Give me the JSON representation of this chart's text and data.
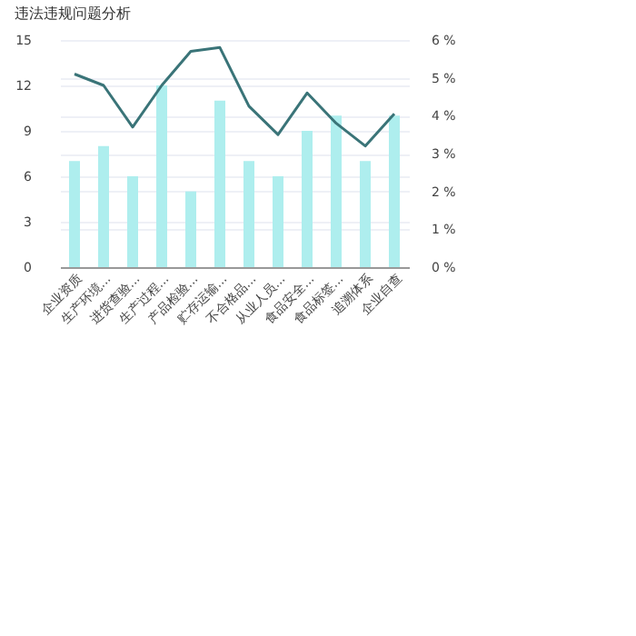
{
  "chart_data": {
    "type": "bar",
    "title": "违法违规问题分析",
    "categories": [
      "企业资质",
      "生产环境...",
      "进货查验...",
      "生产过程...",
      "产品检验...",
      "贮存运输...",
      "不合格品...",
      "从业人员...",
      "食品安全...",
      "食品标签...",
      "追溯体系",
      "企业自查"
    ],
    "series": [
      {
        "color": "#aeeeee",
        "values": [
          7,
          8,
          6,
          12,
          5,
          11,
          7,
          6,
          9,
          10,
          7,
          10
        ]
      },
      {
        "type": "line",
        "axis": "y2",
        "color": "#3a7478",
        "values": [
          5.1,
          4.8,
          3.7,
          4.8,
          5.7,
          5.8,
          4.25,
          3.5,
          4.6,
          3.8,
          3.2,
          4.05
        ]
      }
    ],
    "ylim": [
      0,
      15
    ],
    "yticks": [
      0,
      3,
      6,
      9,
      12,
      15
    ],
    "y2lim": [
      0,
      6
    ],
    "y2ticks": [
      {
        "value": 0,
        "label": "0 %"
      },
      {
        "value": 1,
        "label": "1 %"
      },
      {
        "value": 2,
        "label": "2 %"
      },
      {
        "value": 3,
        "label": "3 %"
      },
      {
        "value": 4,
        "label": "4 %"
      },
      {
        "value": 5,
        "label": "5 %"
      },
      {
        "value": 6,
        "label": "6 %"
      }
    ],
    "grid": true,
    "marker": "none",
    "line_style": "solid"
  }
}
